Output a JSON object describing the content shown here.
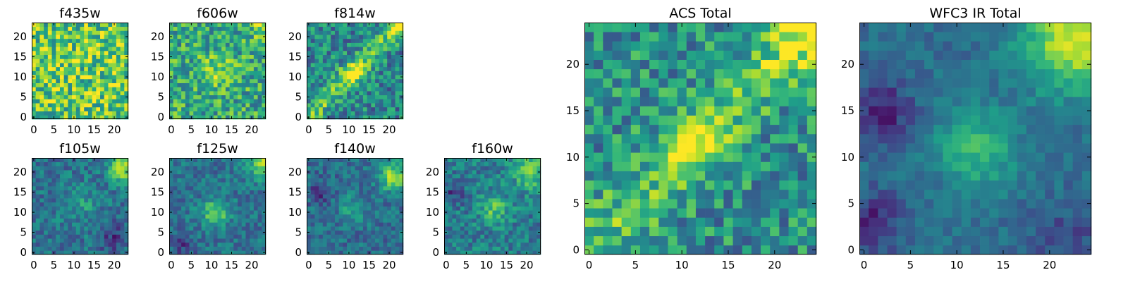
{
  "chart_data": [
    {
      "type": "heatmap",
      "title": "f435w",
      "grid": 24,
      "xticks": [
        "0",
        "5",
        "10",
        "15",
        "20"
      ],
      "yticks": [
        "0",
        "5",
        "10",
        "15",
        "20"
      ],
      "xlim": [
        -0.5,
        23.5
      ],
      "ylim": [
        -0.5,
        23.5
      ],
      "colormap": "viridis",
      "pattern": {
        "base": 0.74,
        "noise": 0.3,
        "features": []
      }
    },
    {
      "type": "heatmap",
      "title": "f606w",
      "grid": 24,
      "xticks": [
        "0",
        "5",
        "10",
        "15",
        "20"
      ],
      "yticks": [
        "0",
        "5",
        "10",
        "15",
        "20"
      ],
      "xlim": [
        -0.5,
        23.5
      ],
      "ylim": [
        -0.5,
        23.5
      ],
      "colormap": "viridis",
      "pattern": {
        "base": 0.6,
        "noise": 0.26,
        "features": [
          {
            "x": 11,
            "y": 11,
            "sigma": 3,
            "amp": 0.22
          },
          {
            "x": 23,
            "y": 23,
            "sigma": 2.5,
            "amp": 0.25
          }
        ]
      }
    },
    {
      "type": "heatmap",
      "title": "f814w",
      "grid": 24,
      "xticks": [
        "0",
        "5",
        "10",
        "15",
        "20"
      ],
      "yticks": [
        "0",
        "5",
        "10",
        "15",
        "20"
      ],
      "xlim": [
        -0.5,
        23.5
      ],
      "ylim": [
        -0.5,
        23.5
      ],
      "colormap": "viridis",
      "pattern": {
        "base": 0.45,
        "noise": 0.24,
        "features": [
          {
            "x": 11,
            "y": 11,
            "sigma": 2.2,
            "amp": 0.32
          },
          {
            "diag": true,
            "offset": 0,
            "width": 1.6,
            "amp": 0.3
          },
          {
            "x": 23,
            "y": 23,
            "sigma": 2.5,
            "amp": 0.3
          }
        ]
      }
    },
    {
      "type": "heatmap",
      "title": "f105w",
      "grid": 24,
      "xticks": [
        "0",
        "5",
        "10",
        "15",
        "20"
      ],
      "yticks": [
        "0",
        "5",
        "10",
        "15",
        "20"
      ],
      "xlim": [
        -0.5,
        23.5
      ],
      "ylim": [
        -0.5,
        23.5
      ],
      "colormap": "viridis",
      "pattern": {
        "base": 0.38,
        "noise": 0.16,
        "features": [
          {
            "x": 22,
            "y": 21,
            "sigma": 2.3,
            "amp": 0.55
          },
          {
            "x": 12,
            "y": 12,
            "sigma": 3,
            "amp": 0.15
          },
          {
            "x": 20,
            "y": 4,
            "sigma": 2.5,
            "amp": -0.2
          }
        ]
      }
    },
    {
      "type": "heatmap",
      "title": "f125w",
      "grid": 24,
      "xticks": [
        "0",
        "5",
        "10",
        "15",
        "20"
      ],
      "yticks": [
        "0",
        "5",
        "10",
        "15",
        "20"
      ],
      "xlim": [
        -0.5,
        23.5
      ],
      "ylim": [
        -0.5,
        23.5
      ],
      "colormap": "viridis",
      "pattern": {
        "base": 0.38,
        "noise": 0.15,
        "features": [
          {
            "x": 11,
            "y": 10,
            "sigma": 2.3,
            "amp": 0.42
          },
          {
            "x": 23,
            "y": 23,
            "sigma": 2.8,
            "amp": 0.5
          },
          {
            "x": 3,
            "y": 2,
            "sigma": 2,
            "amp": -0.2
          }
        ]
      }
    },
    {
      "type": "heatmap",
      "title": "f140w",
      "grid": 24,
      "xticks": [
        "0",
        "5",
        "10",
        "15",
        "20"
      ],
      "yticks": [
        "0",
        "5",
        "10",
        "15",
        "20"
      ],
      "xlim": [
        -0.5,
        23.5
      ],
      "ylim": [
        -0.5,
        23.5
      ],
      "colormap": "viridis",
      "pattern": {
        "base": 0.36,
        "noise": 0.15,
        "features": [
          {
            "x": 21,
            "y": 19,
            "sigma": 2.5,
            "amp": 0.5
          },
          {
            "x": 11,
            "y": 11,
            "sigma": 2.5,
            "amp": 0.2
          },
          {
            "x": 3,
            "y": 15,
            "sigma": 2,
            "amp": -0.18
          }
        ]
      }
    },
    {
      "type": "heatmap",
      "title": "f160w",
      "grid": 24,
      "xticks": [
        "0",
        "5",
        "10",
        "15",
        "20"
      ],
      "yticks": [
        "0",
        "5",
        "10",
        "15",
        "20"
      ],
      "xlim": [
        -0.5,
        23.5
      ],
      "ylim": [
        -0.5,
        23.5
      ],
      "colormap": "viridis",
      "pattern": {
        "base": 0.42,
        "noise": 0.17,
        "features": [
          {
            "x": 12,
            "y": 11,
            "sigma": 2.5,
            "amp": 0.3
          },
          {
            "x": 21,
            "y": 20,
            "sigma": 2.8,
            "amp": 0.38
          },
          {
            "x": 2,
            "y": 15,
            "sigma": 2,
            "amp": -0.22
          }
        ]
      }
    },
    {
      "type": "heatmap",
      "title": "ACS Total",
      "grid": 25,
      "xticks": [
        "0",
        "5",
        "10",
        "15",
        "20"
      ],
      "yticks": [
        "0",
        "5",
        "10",
        "15",
        "20"
      ],
      "xlim": [
        -0.5,
        24.5
      ],
      "ylim": [
        -0.5,
        24.5
      ],
      "colormap": "viridis",
      "pattern": {
        "base": 0.5,
        "noise": 0.24,
        "features": [
          {
            "x": 11,
            "y": 11,
            "sigma": 2.2,
            "amp": 0.35
          },
          {
            "diag": true,
            "offset": 0,
            "width": 2.2,
            "amp": 0.22
          },
          {
            "x": 24,
            "y": 24,
            "sigma": 3.5,
            "amp": 0.35
          }
        ]
      }
    },
    {
      "type": "heatmap",
      "title": "WFC3 IR Total",
      "grid": 25,
      "xticks": [
        "0",
        "5",
        "10",
        "15",
        "20"
      ],
      "yticks": [
        "0",
        "5",
        "10",
        "15",
        "20"
      ],
      "xlim": [
        -0.5,
        24.5
      ],
      "ylim": [
        -0.5,
        24.5
      ],
      "colormap": "viridis",
      "pattern": {
        "base": 0.36,
        "noise": 0.09,
        "features": [
          {
            "x": 12,
            "y": 11,
            "sigma": 3,
            "amp": 0.32
          },
          {
            "x": 23,
            "y": 23,
            "sigma": 4,
            "amp": 0.6
          },
          {
            "x": 2,
            "y": 15,
            "sigma": 2.2,
            "amp": -0.28
          },
          {
            "x": 1,
            "y": 3,
            "sigma": 2.2,
            "amp": -0.25
          },
          {
            "x": 22,
            "y": 1,
            "sigma": 2.5,
            "amp": -0.15
          }
        ]
      }
    }
  ]
}
